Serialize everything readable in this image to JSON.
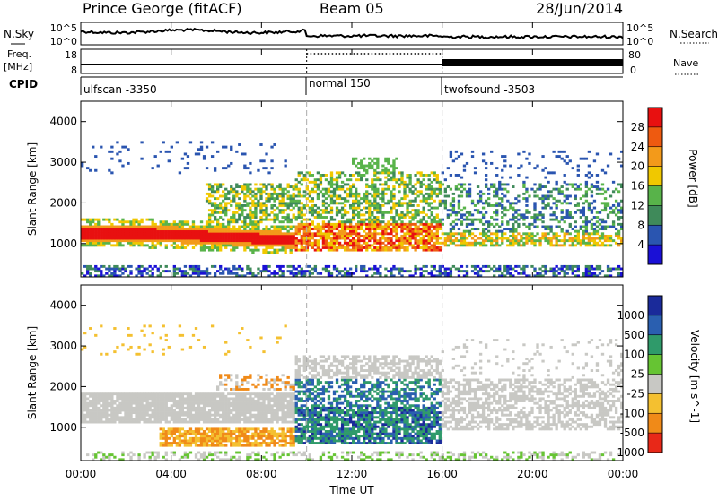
{
  "header": {
    "station": "Prince George (fitACF)",
    "beam": "Beam 05",
    "date": "28/Jun/2014"
  },
  "summary_panel": {
    "left_labels": {
      "nsky": "N.Sky",
      "freq": "Freq.",
      "freq_unit": "[MHz]",
      "cpid": "CPID"
    },
    "right_labels": {
      "nsearch": "N.Search",
      "nave": "Nave"
    },
    "left_ticks": {
      "nsky_top": "10^5",
      "nsky_bottom": "10^0",
      "freq_top": "18",
      "freq_bottom": "8"
    },
    "right_ticks": {
      "nsearch_top": "10^5",
      "nsearch_bottom": "10^0",
      "nave_top": "80",
      "nave_bottom": "0"
    },
    "cpid_segments": [
      {
        "label": "ulfscan -3350",
        "start_hour": 0,
        "end_hour": 10
      },
      {
        "label": "normal 150",
        "start_hour": 10,
        "end_hour": 16
      },
      {
        "label": "twofsound -3503",
        "start_hour": 16,
        "end_hour": 24
      }
    ]
  },
  "chart_data": [
    {
      "type": "heatmap",
      "name": "power",
      "ylabel": "Slant Range [km]",
      "ylim": [
        180,
        4500
      ],
      "yticks": [
        "1000",
        "2000",
        "3000",
        "4000"
      ],
      "colorbar_label": "Power [dB]",
      "colorbar_ticks": [
        "4",
        "8",
        "12",
        "16",
        "20",
        "24",
        "28"
      ],
      "colors": [
        "#1a10d6",
        "#2a55b0",
        "#3f8a5a",
        "#58b34a",
        "#f0c800",
        "#f39a1a",
        "#ee5a10",
        "#e81010"
      ]
    },
    {
      "type": "heatmap",
      "name": "velocity",
      "ylabel": "Slant Range [km]",
      "ylim": [
        180,
        4500
      ],
      "yticks": [
        "1000",
        "2000",
        "3000",
        "4000"
      ],
      "colorbar_label": "Velocity [m s^-1]",
      "colorbar_ticks": [
        "1000",
        "500",
        "100",
        "25",
        "-25",
        "-100",
        "-500",
        "-1000"
      ],
      "colors": [
        "#1a2a9a",
        "#2a5fb0",
        "#2f9a6a",
        "#66c433",
        "#c8c8c4",
        "#f4c030",
        "#f08a18",
        "#e82818"
      ]
    }
  ],
  "x_axis": {
    "label": "Time UT",
    "ticks": [
      "00:00",
      "04:00",
      "08:00",
      "12:00",
      "16:00",
      "20:00",
      "00:00"
    ],
    "range_hours": [
      0,
      24
    ]
  }
}
